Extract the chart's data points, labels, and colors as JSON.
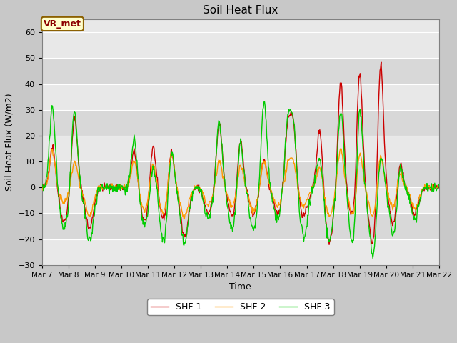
{
  "title": "Soil Heat Flux",
  "xlabel": "Time",
  "ylabel": "Soil Heat Flux (W/m2)",
  "ylim": [
    -30,
    65
  ],
  "yticks": [
    -30,
    -20,
    -10,
    0,
    10,
    20,
    30,
    40,
    50,
    60
  ],
  "start_day": 7,
  "end_day": 22,
  "n_points": 720,
  "fig_bg": "#c8c8c8",
  "plot_bg_light": "#e8e8e8",
  "plot_bg_dark": "#d8d8d8",
  "shf1_color": "#cc0000",
  "shf2_color": "#ff9900",
  "shf3_color": "#00cc00",
  "legend_labels": [
    "SHF 1",
    "SHF 2",
    "SHF 3"
  ],
  "vr_label": "VR_met",
  "seed": 42,
  "peak_days": [
    7.4,
    8.25,
    10.5,
    11.2,
    11.9,
    13.7,
    14.5,
    15.4,
    16.3,
    16.5,
    17.5,
    18.3,
    19.0,
    19.8,
    20.5
  ],
  "peak_h1": [
    16,
    27,
    14,
    17,
    15,
    25,
    19,
    11,
    23,
    24,
    23,
    41,
    47,
    50,
    13
  ],
  "peak_h2": [
    14,
    10,
    10,
    10,
    14,
    10,
    9,
    10,
    8,
    10,
    8,
    15,
    15,
    13,
    8
  ],
  "peak_h3": [
    31,
    29,
    19,
    9,
    15,
    25,
    19,
    34,
    25,
    24,
    12,
    30,
    35,
    15,
    13
  ],
  "trough_days": [
    7.85,
    8.8,
    10.9,
    11.6,
    12.4,
    13.3,
    14.2,
    15.0,
    15.9,
    16.9,
    17.85,
    18.75,
    19.5,
    20.3,
    21.1
  ],
  "trough_d1": [
    -13,
    -16,
    -13,
    -12,
    -19,
    -10,
    -11,
    -10,
    -10,
    -11,
    -21,
    -12,
    -22,
    -15,
    -10
  ],
  "trough_d2": [
    -6,
    -11,
    -9,
    -10,
    -11,
    -7,
    -7,
    -9,
    -7,
    -7,
    -11,
    -11,
    -11,
    -8,
    -8
  ],
  "trough_d3": [
    -16,
    -21,
    -15,
    -21,
    -22,
    -12,
    -16,
    -16,
    -12,
    -19,
    -21,
    -22,
    -26,
    -20,
    -12
  ]
}
